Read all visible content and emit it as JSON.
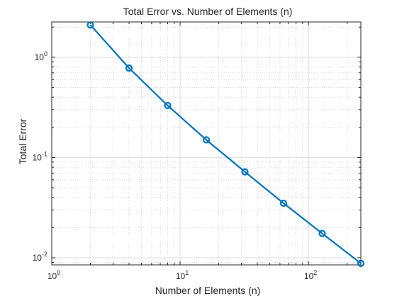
{
  "chart_data": {
    "type": "line",
    "title": "Total Error vs. Number of Elements (n)",
    "xlabel": "Number of Elements (n)",
    "ylabel": "Total Error",
    "x_scale": "log",
    "y_scale": "log",
    "xlim": [
      1,
      256
    ],
    "ylim": [
      0.0085,
      2.25
    ],
    "grid": true,
    "minor_grid": true,
    "x_ticks": [
      {
        "value": 1,
        "base": "10",
        "exp": "0"
      },
      {
        "value": 10,
        "base": "10",
        "exp": "1"
      },
      {
        "value": 100,
        "base": "10",
        "exp": "2"
      }
    ],
    "y_ticks": [
      {
        "value": 0.01,
        "base": "10",
        "exp": "-2"
      },
      {
        "value": 0.1,
        "base": "10",
        "exp": "-1"
      },
      {
        "value": 1,
        "base": "10",
        "exp": "0"
      }
    ],
    "series": [
      {
        "color": "#0072BD",
        "marker": "circle",
        "x": [
          2,
          4,
          8,
          16,
          32,
          64,
          128,
          256
        ],
        "y": [
          2.1,
          0.78,
          0.33,
          0.15,
          0.072,
          0.035,
          0.0175,
          0.0088
        ]
      }
    ]
  }
}
